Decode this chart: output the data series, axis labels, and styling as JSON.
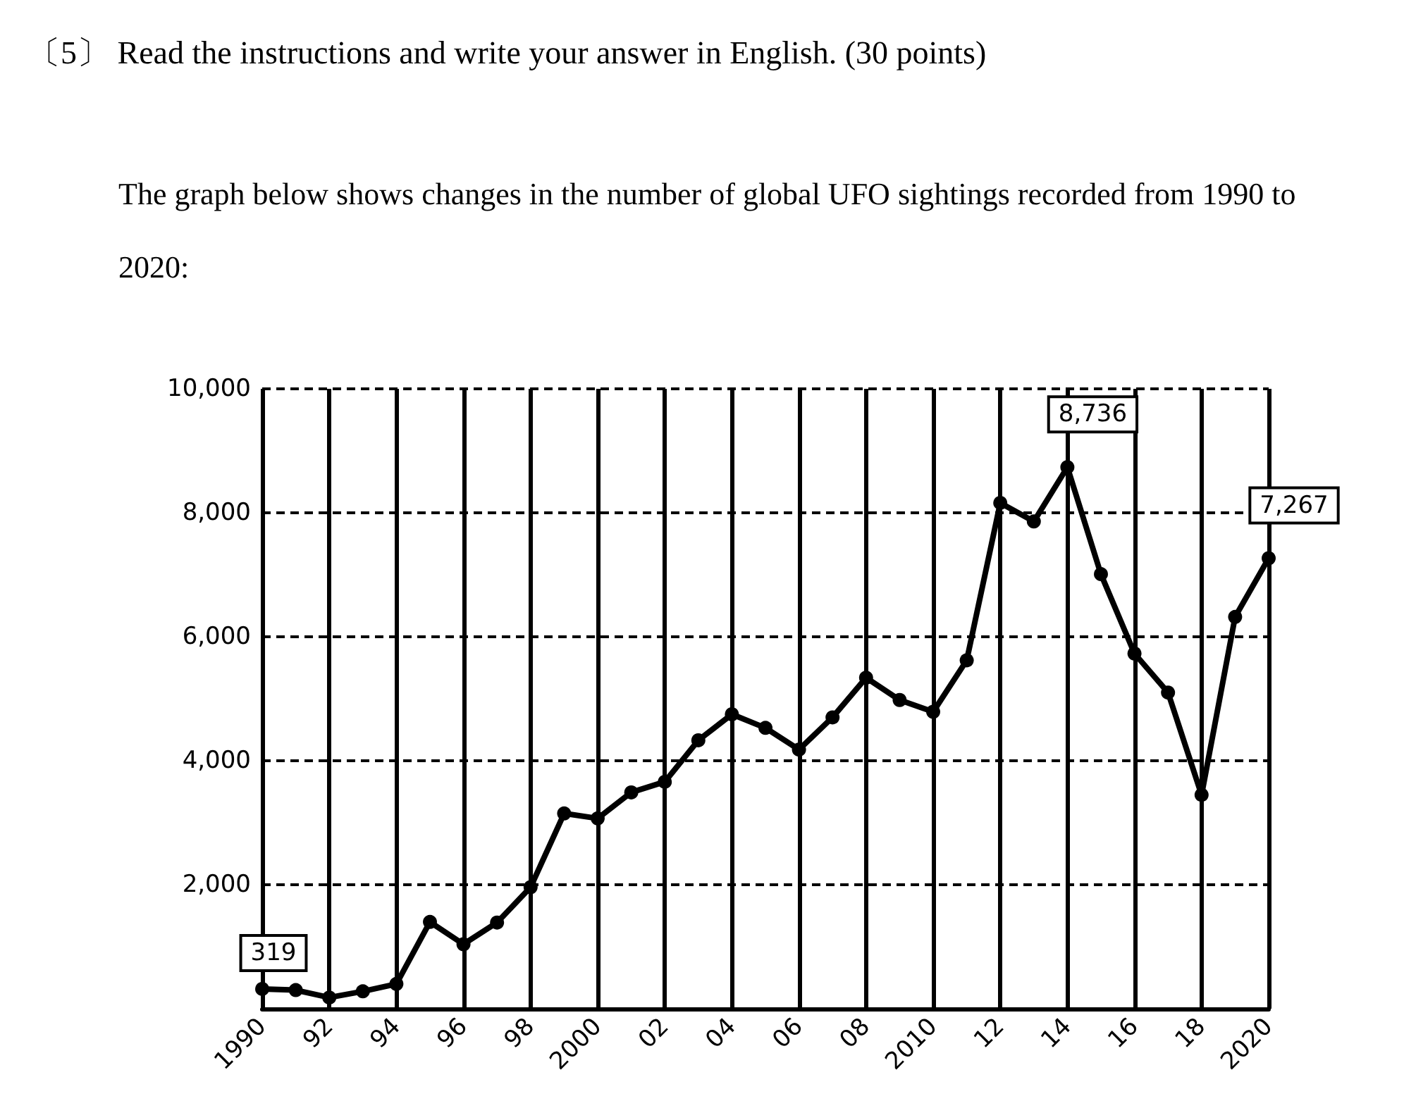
{
  "chart_data": {
    "type": "line",
    "title": "〔5〕 Read the instructions and write your answer in English. (30 points)",
    "subtitle": "The graph below shows changes in the number of global UFO sightings recorded from 1990 to 2020:",
    "x": [
      1990,
      1991,
      1992,
      1993,
      1994,
      1995,
      1996,
      1997,
      1998,
      1999,
      2000,
      2001,
      2002,
      2003,
      2004,
      2005,
      2006,
      2007,
      2008,
      2009,
      2010,
      2011,
      2012,
      2013,
      2014,
      2015,
      2016,
      2017,
      2018,
      2019,
      2020
    ],
    "series": [
      {
        "color": "#000000",
        "values": [
          319,
          300,
          180,
          280,
          400,
          1400,
          1040,
          1390,
          1960,
          3150,
          3070,
          3490,
          3660,
          4330,
          4750,
          4530,
          4180,
          4700,
          5340,
          4980,
          4790,
          5620,
          8160,
          7860,
          8736,
          7010,
          5730,
          5100,
          3450,
          6320,
          7267
        ],
        "value_labels": [
          "319",
          null,
          null,
          null,
          null,
          null,
          null,
          null,
          null,
          null,
          null,
          null,
          null,
          null,
          null,
          null,
          null,
          null,
          null,
          null,
          null,
          null,
          null,
          null,
          "8,736",
          null,
          null,
          null,
          null,
          null,
          "7,267"
        ]
      }
    ],
    "xlim": [
      1990,
      2020
    ],
    "xticks": [
      1990,
      {
        "value": 1992,
        "label": "92"
      },
      {
        "value": 1994,
        "label": "94"
      },
      {
        "value": 1996,
        "label": "96"
      },
      {
        "value": 1998,
        "label": "98"
      },
      2000,
      {
        "value": 2002,
        "label": "02"
      },
      {
        "value": 2004,
        "label": "04"
      },
      {
        "value": 2006,
        "label": "06"
      },
      {
        "value": 2008,
        "label": "08"
      },
      2010,
      {
        "value": 2012,
        "label": "12"
      },
      {
        "value": 2014,
        "label": "14"
      },
      {
        "value": 2016,
        "label": "16"
      },
      {
        "value": 2018,
        "label": "18"
      },
      2020
    ],
    "ylim": [
      0,
      10000
    ],
    "yticks": [
      {
        "value": 0,
        "label": null
      },
      {
        "value": 2000,
        "label": "2,000"
      },
      {
        "value": 4000,
        "label": "4,000"
      },
      {
        "value": 6000,
        "label": "6,000"
      },
      {
        "value": 8000,
        "label": "8,000"
      },
      {
        "value": 10000,
        "label": "10,000"
      }
    ],
    "grid": true,
    "marker": "circle",
    "line_style": "solid"
  }
}
